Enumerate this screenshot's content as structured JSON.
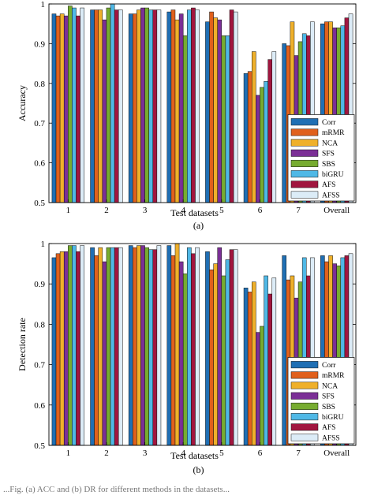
{
  "series_colors": [
    "#1f6fb4",
    "#e0601c",
    "#efb02a",
    "#7b2f96",
    "#77ac30",
    "#4fb8e6",
    "#a1163f",
    "#dcecf7"
  ],
  "caption_fragment": "...Fig. (a) ACC and (b) DR for different methods in the datasets...",
  "chart_data": [
    {
      "type": "bar",
      "caption": "(a)",
      "xlabel": "Test  datasets",
      "ylabel": "Accuracy",
      "ylim": [
        0.5,
        1.0
      ],
      "yticks": [
        "0.5",
        "0.6",
        "0.7",
        "0.8",
        "0.9",
        "1"
      ],
      "categories": [
        "1",
        "2",
        "3",
        "4",
        "5",
        "6",
        "7",
        "Overall"
      ],
      "legend_position": "lower-right",
      "grid": false,
      "series": [
        {
          "name": "Corr",
          "values": [
            0.975,
            0.985,
            0.975,
            0.98,
            0.955,
            0.825,
            0.9,
            0.95
          ]
        },
        {
          "name": "mRMR",
          "values": [
            0.97,
            0.985,
            0.975,
            0.985,
            0.98,
            0.83,
            0.895,
            0.955
          ]
        },
        {
          "name": "NCA",
          "values": [
            0.975,
            0.985,
            0.985,
            0.96,
            0.965,
            0.88,
            0.955,
            0.955
          ]
        },
        {
          "name": "SFS",
          "values": [
            0.97,
            0.96,
            0.99,
            0.975,
            0.96,
            0.77,
            0.87,
            0.94
          ]
        },
        {
          "name": "SBS",
          "values": [
            0.995,
            0.99,
            0.99,
            0.92,
            0.92,
            0.79,
            0.905,
            0.94
          ]
        },
        {
          "name": "biGRU",
          "values": [
            0.99,
            1.0,
            0.985,
            0.985,
            0.92,
            0.805,
            0.925,
            0.945
          ]
        },
        {
          "name": "AFS",
          "values": [
            0.97,
            0.985,
            0.985,
            0.99,
            0.985,
            0.86,
            0.92,
            0.965
          ]
        },
        {
          "name": "AFSS",
          "values": [
            0.99,
            0.985,
            0.985,
            0.985,
            0.98,
            0.88,
            0.955,
            0.975
          ]
        }
      ]
    },
    {
      "type": "bar",
      "caption": "(b)",
      "xlabel": "Test  datasets",
      "ylabel": "Detection rate",
      "ylim": [
        0.5,
        1.0
      ],
      "yticks": [
        "0.5",
        "0.6",
        "0.7",
        "0.8",
        "0.9",
        "1"
      ],
      "categories": [
        "1",
        "2",
        "3",
        "4",
        "5",
        "6",
        "7",
        "Overall"
      ],
      "legend_position": "lower-right",
      "grid": false,
      "series": [
        {
          "name": "Corr",
          "values": [
            0.965,
            0.99,
            0.995,
            0.995,
            0.98,
            0.89,
            0.97,
            0.97
          ]
        },
        {
          "name": "mRMR",
          "values": [
            0.975,
            0.97,
            0.99,
            0.97,
            0.935,
            0.88,
            0.91,
            0.955
          ]
        },
        {
          "name": "NCA",
          "values": [
            0.98,
            0.99,
            0.995,
            1.0,
            0.95,
            0.905,
            0.92,
            0.97
          ]
        },
        {
          "name": "SFS",
          "values": [
            0.98,
            0.955,
            0.995,
            0.955,
            0.99,
            0.78,
            0.865,
            0.95
          ]
        },
        {
          "name": "SBS",
          "values": [
            0.995,
            0.99,
            0.99,
            0.925,
            0.92,
            0.795,
            0.905,
            0.945
          ]
        },
        {
          "name": "biGRU",
          "values": [
            0.995,
            0.99,
            0.985,
            0.99,
            0.96,
            0.92,
            0.965,
            0.965
          ]
        },
        {
          "name": "AFS",
          "values": [
            0.98,
            0.99,
            0.985,
            0.975,
            0.985,
            0.875,
            0.92,
            0.97
          ]
        },
        {
          "name": "AFSS",
          "values": [
            0.995,
            0.99,
            0.995,
            0.99,
            0.985,
            0.915,
            0.965,
            0.975
          ]
        }
      ]
    }
  ]
}
